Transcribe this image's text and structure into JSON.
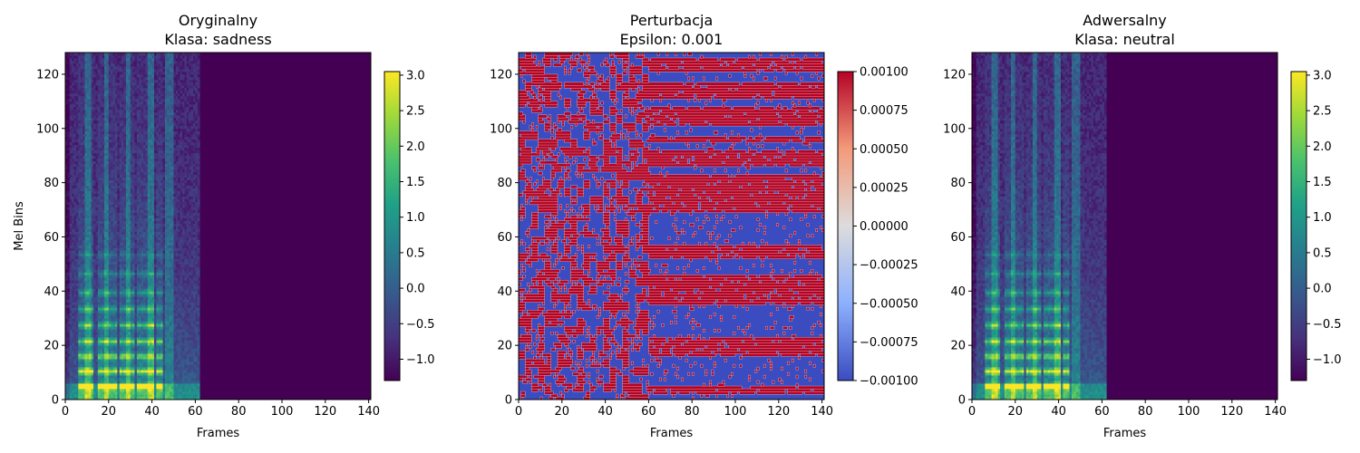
{
  "figure": {
    "panels": [
      {
        "id": "original",
        "title_line1": "Oryginalny",
        "title_line2": "Klasa: sadness"
      },
      {
        "id": "perturbation",
        "title_line1": "Perturbacja",
        "title_line2": "Epsilon: 0.001"
      },
      {
        "id": "adversarial",
        "title_line1": "Adwersalny",
        "title_line2": "Klasa: neutral"
      }
    ]
  },
  "chart_data": [
    {
      "type": "heatmap",
      "title": "Oryginalny\nKlasa: sadness",
      "xlabel": "Frames",
      "ylabel": "Mel Bins",
      "xlim": [
        0,
        141
      ],
      "ylim": [
        0,
        128
      ],
      "x_ticks": [
        "0",
        "20",
        "40",
        "60",
        "80",
        "100",
        "120",
        "140"
      ],
      "y_ticks": [
        "0",
        "20",
        "40",
        "60",
        "80",
        "100",
        "120"
      ],
      "colormap": "viridis",
      "color_range": [
        -1.3,
        3.05
      ],
      "colorbar_ticks": [
        "3.0",
        "2.5",
        "2.0",
        "1.5",
        "1.0",
        "0.5",
        "0.0",
        "−0.5",
        "−1.0"
      ],
      "colorbar_values": [
        3.0,
        2.5,
        2.0,
        1.5,
        1.0,
        0.5,
        0.0,
        -0.5,
        -1.0
      ],
      "signal_frames": 62,
      "total_frames": 141,
      "mel_bins": 128,
      "fill_value": -1.3
    },
    {
      "type": "heatmap",
      "title": "Perturbacja\nEpsilon: 0.001",
      "xlabel": "Frames",
      "ylabel": "",
      "xlim": [
        0,
        141
      ],
      "ylim": [
        0,
        128
      ],
      "x_ticks": [
        "0",
        "20",
        "40",
        "60",
        "80",
        "100",
        "120",
        "140"
      ],
      "y_ticks": [
        "0",
        "20",
        "40",
        "60",
        "80",
        "100",
        "120"
      ],
      "colormap": "coolwarm",
      "color_range": [
        -0.001,
        0.001
      ],
      "colorbar_ticks": [
        "0.00100",
        "0.00075",
        "0.00050",
        "0.00025",
        "0.00000",
        "−0.00025",
        "−0.00050",
        "−0.00075",
        "−0.00100"
      ],
      "colorbar_values": [
        0.001,
        0.00075,
        0.0005,
        0.00025,
        0.0,
        -0.00025,
        -0.0005,
        -0.00075,
        -0.001
      ],
      "values": "sign pattern of ±0.001 per frame/mel bin"
    },
    {
      "type": "heatmap",
      "title": "Adwersalny\nKlasa: neutral",
      "xlabel": "Frames",
      "ylabel": "",
      "xlim": [
        0,
        141
      ],
      "ylim": [
        0,
        128
      ],
      "x_ticks": [
        "0",
        "20",
        "40",
        "60",
        "80",
        "100",
        "120",
        "140"
      ],
      "y_ticks": [
        "0",
        "20",
        "40",
        "60",
        "80",
        "100",
        "120"
      ],
      "colormap": "viridis",
      "color_range": [
        -1.3,
        3.05
      ],
      "colorbar_ticks": [
        "3.0",
        "2.5",
        "2.0",
        "1.5",
        "1.0",
        "0.5",
        "0.0",
        "−0.5",
        "−1.0"
      ],
      "colorbar_values": [
        3.0,
        2.5,
        2.0,
        1.5,
        1.0,
        0.5,
        0.0,
        -0.5,
        -1.0
      ],
      "signal_frames": 62,
      "total_frames": 141,
      "mel_bins": 128,
      "fill_value": -1.3
    }
  ]
}
